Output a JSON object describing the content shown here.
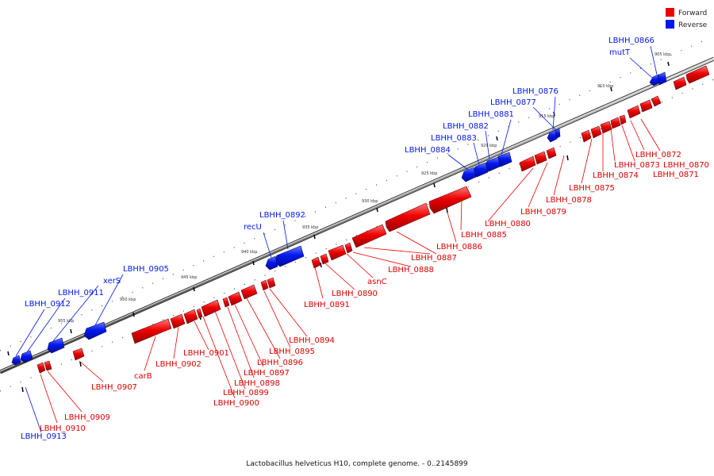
{
  "legend": {
    "forward": {
      "label": "Forward",
      "color": "#ee0000"
    },
    "reverse": {
      "label": "Reverse",
      "color": "#0018ee"
    }
  },
  "caption": "Lactobacillus helveticus H10, complete genome. - 0..2145899",
  "scale_labels": [
    "905 kbp",
    "910 kbp",
    "915 kbp",
    "920 kbp",
    "925 kbp",
    "930 kbp",
    "935 kbp",
    "940 kbp",
    "945 kbp",
    "950 kbp",
    "955 kbp"
  ],
  "genes": {
    "reverse": [
      "LBHH_0866",
      "mutT",
      "LBHH_0876",
      "LBHH_0877",
      "LBHH_0881",
      "LBHH_0882",
      "LBHH_0883",
      "LBHH_0884",
      "LBHH_0892",
      "recU",
      "LBHH_0905",
      "xerS",
      "LBHH_0911",
      "LBHH_0912",
      "LBHH_0913"
    ],
    "forward": [
      "LBHH_0872",
      "LBHH_0870",
      "LBHH_0873",
      "LBHH_0871",
      "LBHH_0874",
      "LBHH_0875",
      "LBHH_0878",
      "LBHH_0879",
      "LBHH_0880",
      "LBHH_0885",
      "LBHH_0886",
      "LBHH_0887",
      "LBHH_0888",
      "asnC",
      "LBHH_0890",
      "LBHH_0891",
      "LBHH_0894",
      "LBHH_0895",
      "LBHH_0896",
      "LBHH_0897",
      "LBHH_0898",
      "LBHH_0899",
      "LBHH_0900",
      "LBHH_0901",
      "LBHH_0902",
      "carB",
      "LBHH_0907",
      "LBHH_0909",
      "LBHH_0910"
    ]
  }
}
